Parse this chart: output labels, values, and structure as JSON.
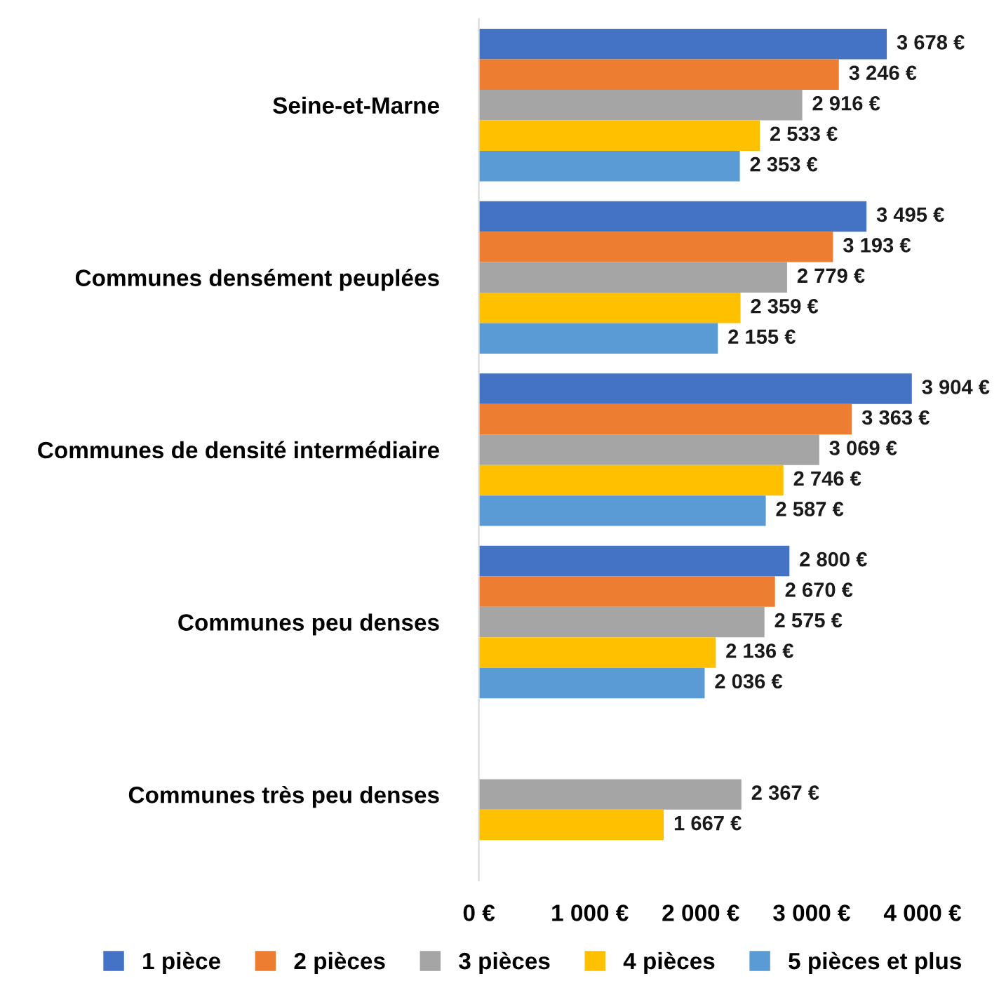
{
  "chart_data": {
    "type": "bar",
    "orientation": "horizontal",
    "categories": [
      "Seine-et-Marne",
      "Communes densément peuplées",
      "Communes de densité intermédiaire",
      "Communes peu denses",
      "Communes très peu denses"
    ],
    "series": [
      {
        "name": "1 pièce",
        "color": "#4472c4",
        "values": [
          3678,
          3495,
          3904,
          2800,
          null
        ],
        "value_labels": [
          "3 678 €",
          "3 495 €",
          "3 904 €",
          "2 800 €",
          null
        ]
      },
      {
        "name": "2 pièces",
        "color": "#ed7d31",
        "values": [
          3246,
          3193,
          3363,
          2670,
          null
        ],
        "value_labels": [
          "3 246 €",
          "3 193 €",
          "3 363 €",
          "2 670 €",
          null
        ]
      },
      {
        "name": "3 pièces",
        "color": "#a5a5a5",
        "values": [
          2916,
          2779,
          3069,
          2575,
          2367
        ],
        "value_labels": [
          "2 916 €",
          "2 779 €",
          "3 069 €",
          "2 575 €",
          "2 367 €"
        ]
      },
      {
        "name": "4 pièces",
        "color": "#ffc000",
        "values": [
          2533,
          2359,
          2746,
          2136,
          1667
        ],
        "value_labels": [
          "2 533 €",
          "2 359 €",
          "2 746 €",
          "2 136 €",
          "1 667 €"
        ]
      },
      {
        "name": "5 pièces et plus",
        "color": "#5b9bd5",
        "values": [
          2353,
          2155,
          2587,
          2036,
          null
        ],
        "value_labels": [
          "2 353 €",
          "2 155 €",
          "2 587 €",
          "2 036 €",
          null
        ]
      }
    ],
    "xlim": [
      0,
      4000
    ],
    "xticks": [
      {
        "value": 0,
        "label": "0 €"
      },
      {
        "value": 1000,
        "label": "1 000 €"
      },
      {
        "value": 2000,
        "label": "2 000 €"
      },
      {
        "value": 3000,
        "label": "3 000 €"
      },
      {
        "value": 4000,
        "label": "4 000 €"
      }
    ],
    "grid": false,
    "legend": "bottom"
  }
}
